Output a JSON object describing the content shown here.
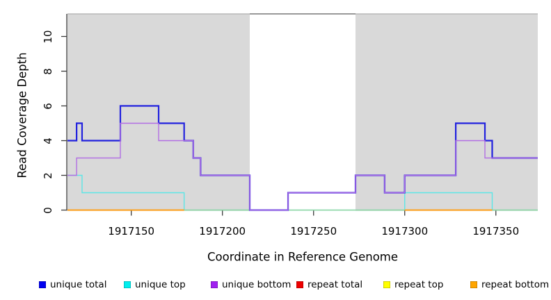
{
  "figure": {
    "x_axis_label": "Coordinate in Reference Genome",
    "y_axis_label": "Read Coverage Depth"
  },
  "legend": [
    {
      "label": "unique total",
      "color": "#0000F0"
    },
    {
      "label": "unique top",
      "color": "#00EEEE"
    },
    {
      "label": "unique bottom",
      "color": "#A020F0"
    },
    {
      "label": "repeat total",
      "color": "#EE0000"
    },
    {
      "label": "repeat top",
      "color": "#FFFF00"
    },
    {
      "label": "repeat bottom",
      "color": "#FFA500"
    }
  ],
  "chart_data": {
    "type": "line",
    "subtype": "step-coverage-plot",
    "title": "",
    "xlabel": "Coordinate in Reference Genome",
    "ylabel": "Read Coverage Depth",
    "xlim": [
      1917115,
      1917373
    ],
    "ylim": [
      0,
      11.3
    ],
    "grid": false,
    "legend_position": "below-plot",
    "x_ticks": [
      1917150,
      1917200,
      1917250,
      1917300,
      1917350
    ],
    "y_ticks": [
      0,
      2,
      4,
      6,
      8,
      10
    ],
    "background_regions": [
      {
        "name": "shaded-left",
        "start": 1917115,
        "end": 1917215,
        "color": "#D9D9D9"
      },
      {
        "name": "white-gap",
        "start": 1917215,
        "end": 1917273,
        "color": "#FFFFFF",
        "top_border": true
      },
      {
        "name": "shaded-right",
        "start": 1917273,
        "end": 1917373,
        "color": "#D9D9D9"
      }
    ],
    "series": [
      {
        "name": "unique total",
        "color": "#2121DE",
        "line_width": 2.2,
        "draw_order": 3,
        "steps": [
          [
            1917115,
            4
          ],
          [
            1917120,
            5
          ],
          [
            1917123,
            4
          ],
          [
            1917144,
            6
          ],
          [
            1917165,
            5
          ],
          [
            1917179,
            4
          ],
          [
            1917184,
            3
          ],
          [
            1917188,
            2
          ],
          [
            1917215,
            0
          ],
          [
            1917236,
            1
          ],
          [
            1917273,
            2
          ],
          [
            1917289,
            1
          ],
          [
            1917300,
            2
          ],
          [
            1917328,
            5
          ],
          [
            1917344,
            4
          ],
          [
            1917348,
            3
          ]
        ],
        "end": 1917373
      },
      {
        "name": "unique top",
        "color": "#5CE6E6",
        "line_width": 1.4,
        "draw_order": 1,
        "steps": [
          [
            1917115,
            2
          ],
          [
            1917123,
            1
          ],
          [
            1917179,
            0
          ],
          [
            1917300,
            1
          ],
          [
            1917348,
            0
          ]
        ],
        "end": 1917373
      },
      {
        "name": "unique bottom",
        "color": "#B26FE3",
        "line_width": 1.4,
        "draw_order": 4,
        "steps": [
          [
            1917115,
            2
          ],
          [
            1917120,
            3
          ],
          [
            1917144,
            5
          ],
          [
            1917165,
            4
          ],
          [
            1917184,
            3
          ],
          [
            1917188,
            2
          ],
          [
            1917215,
            0
          ],
          [
            1917236,
            1
          ],
          [
            1917273,
            2
          ],
          [
            1917289,
            1
          ],
          [
            1917300,
            2
          ],
          [
            1917328,
            4
          ],
          [
            1917344,
            3
          ]
        ],
        "end": 1917373
      },
      {
        "name": "repeat total",
        "color": "#EE0000",
        "line_width": 1.4,
        "draw_order": 5,
        "steps": [],
        "end": 1917373,
        "note": "not visibly above zero (covered by other series)"
      },
      {
        "name": "repeat top",
        "color": "#FFFF00",
        "line_width": 1.4,
        "draw_order": 6,
        "steps": [],
        "end": 1917373,
        "note": "not visibly above zero (covered by other series)"
      },
      {
        "name": "repeat bottom",
        "color": "#FF9E15",
        "line_width": 2.0,
        "draw_order": 7,
        "segments": [
          {
            "start": 1917115,
            "end": 1917179,
            "value": 0
          },
          {
            "start": 1917300,
            "end": 1917348,
            "value": 0
          }
        ]
      },
      {
        "name": "baseline (unlabeled)",
        "color": "#92D192",
        "line_width": 1.3,
        "draw_order": 2,
        "segments": [
          {
            "start": 1917115,
            "end": 1917373,
            "value": 0
          }
        ]
      }
    ]
  }
}
